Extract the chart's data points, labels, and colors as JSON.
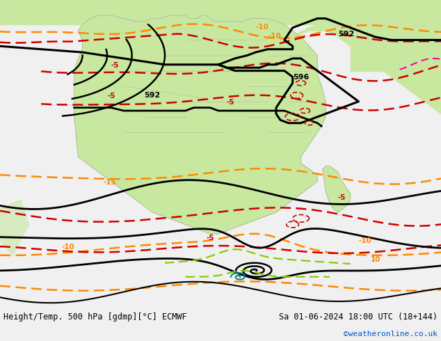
{
  "title_left": "Height/Temp. 500 hPa [gdmp][°C] ECMWF",
  "title_right": "Sa 01-06-2024 18:00 UTC (18+144)",
  "watermark": "©weatheronline.co.uk",
  "watermark_color": "#0055cc",
  "fig_width": 6.34,
  "fig_height": 4.9,
  "dpi": 100,
  "bg_light": "#f0f0f0",
  "green": "#c8e8a0",
  "gray_border": "#aaaaaa",
  "black": "#000000",
  "red": "#cc0000",
  "orange": "#ff8800",
  "yg": "#88cc00",
  "teal": "#008888",
  "pink": "#ff00aa",
  "font_mono": "DejaVu Sans Mono",
  "title_fs": 8.5,
  "label_fs": 7.5,
  "watermark_fs": 8
}
